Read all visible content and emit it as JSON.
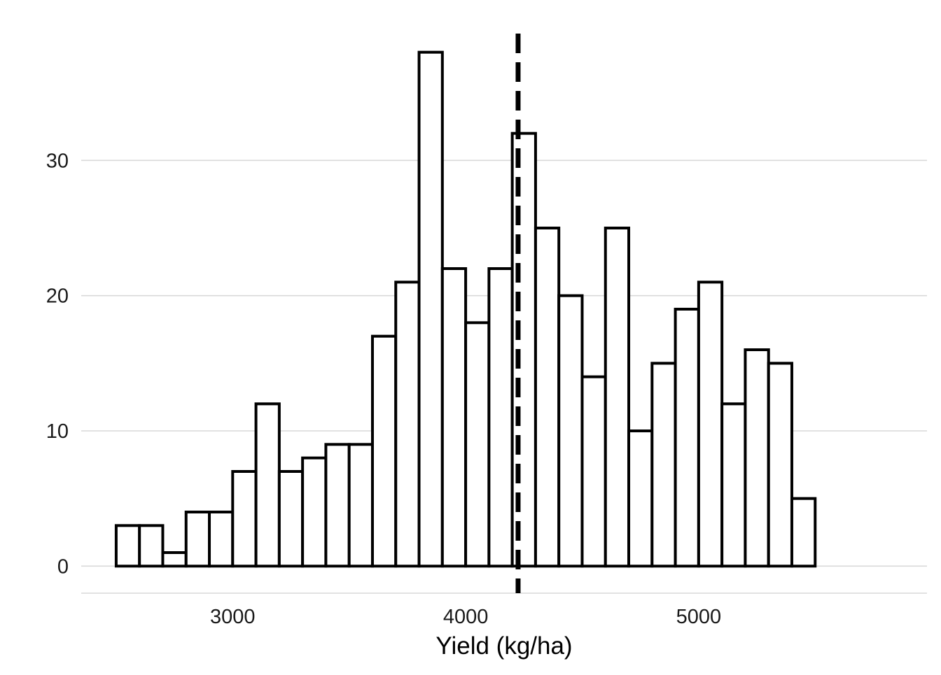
{
  "chart_data": {
    "type": "bar",
    "subtype": "histogram",
    "title": "",
    "xlabel": "Yield (kg/ha)",
    "ylabel": "",
    "bin_width": 100,
    "bins": [
      {
        "x0": 2500,
        "x1": 2600,
        "count": 3
      },
      {
        "x0": 2600,
        "x1": 2700,
        "count": 3
      },
      {
        "x0": 2700,
        "x1": 2800,
        "count": 1
      },
      {
        "x0": 2800,
        "x1": 2900,
        "count": 4
      },
      {
        "x0": 2900,
        "x1": 3000,
        "count": 4
      },
      {
        "x0": 3000,
        "x1": 3100,
        "count": 7
      },
      {
        "x0": 3100,
        "x1": 3200,
        "count": 12
      },
      {
        "x0": 3200,
        "x1": 3300,
        "count": 7
      },
      {
        "x0": 3300,
        "x1": 3400,
        "count": 8
      },
      {
        "x0": 3400,
        "x1": 3500,
        "count": 9
      },
      {
        "x0": 3500,
        "x1": 3600,
        "count": 9
      },
      {
        "x0": 3600,
        "x1": 3700,
        "count": 17
      },
      {
        "x0": 3700,
        "x1": 3800,
        "count": 21
      },
      {
        "x0": 3800,
        "x1": 3900,
        "count": 38
      },
      {
        "x0": 3900,
        "x1": 4000,
        "count": 22
      },
      {
        "x0": 4000,
        "x1": 4100,
        "count": 18
      },
      {
        "x0": 4100,
        "x1": 4200,
        "count": 22
      },
      {
        "x0": 4200,
        "x1": 4300,
        "count": 32
      },
      {
        "x0": 4300,
        "x1": 4400,
        "count": 25
      },
      {
        "x0": 4400,
        "x1": 4500,
        "count": 20
      },
      {
        "x0": 4500,
        "x1": 4600,
        "count": 14
      },
      {
        "x0": 4600,
        "x1": 4700,
        "count": 25
      },
      {
        "x0": 4700,
        "x1": 4800,
        "count": 10
      },
      {
        "x0": 4800,
        "x1": 4900,
        "count": 15
      },
      {
        "x0": 4900,
        "x1": 5000,
        "count": 19
      },
      {
        "x0": 5000,
        "x1": 5100,
        "count": 21
      },
      {
        "x0": 5100,
        "x1": 5200,
        "count": 12
      },
      {
        "x0": 5200,
        "x1": 5300,
        "count": 16
      },
      {
        "x0": 5300,
        "x1": 5400,
        "count": 15
      },
      {
        "x0": 5400,
        "x1": 5500,
        "count": 5
      }
    ],
    "reference_line": {
      "x": 4225,
      "style": "dashed"
    },
    "xlim": [
      2350,
      5980
    ],
    "ylim": [
      -2,
      40
    ],
    "x_ticks": [
      3000,
      4000,
      5000
    ],
    "x_tick_labels": [
      "3000",
      "4000",
      "5000"
    ],
    "y_ticks": [
      0,
      10,
      20,
      30
    ],
    "y_tick_labels": [
      "0",
      "10",
      "20",
      "30"
    ],
    "grid": "horizontal",
    "legend": "none",
    "colors": {
      "bar_fill": "#ffffff",
      "bar_stroke": "#000000",
      "gridline": "#d9d9d9",
      "reference_line": "#000000"
    }
  }
}
